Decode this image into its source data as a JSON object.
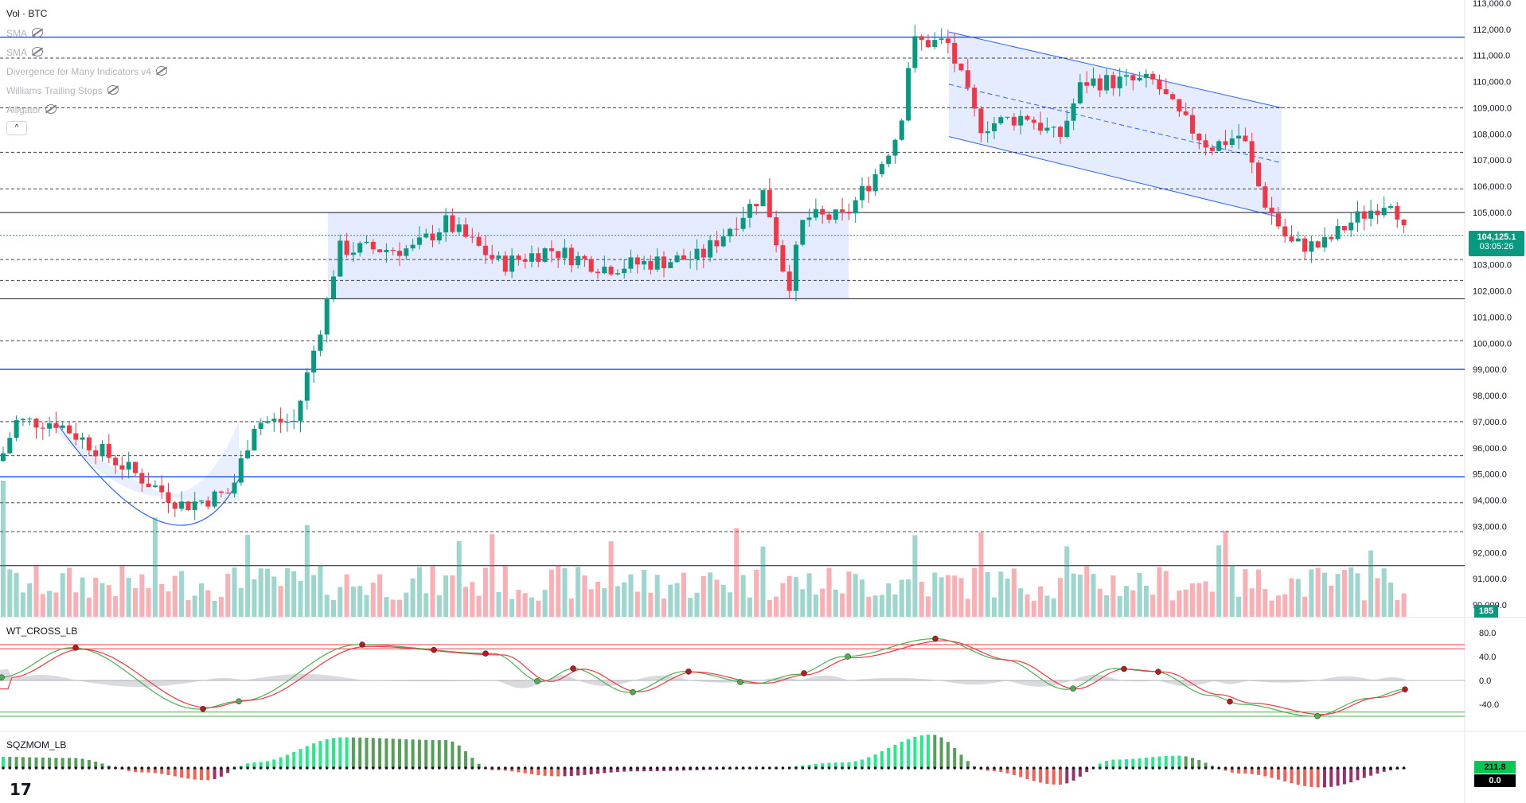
{
  "header": {
    "symbol": "Vol · BTC"
  },
  "indicators": [
    {
      "name": "SMA",
      "icon": "eye-off-icon"
    },
    {
      "name": "SMA",
      "icon": "eye-off-icon"
    },
    {
      "name": "Divergence for Many Indicators v4",
      "icon": "eye-off-icon"
    },
    {
      "name": "Williams Trailing Stops",
      "icon": "eye-off-icon"
    },
    {
      "name": "Alligator",
      "icon": "eye-off-icon"
    }
  ],
  "collapse_label": "^",
  "price_tag": {
    "price": "104,125.1",
    "countdown": "03:05:26",
    "color": "#089981"
  },
  "volume_tag": {
    "value": "185"
  },
  "wt_pane": {
    "title": "WT_CROSS_LB",
    "ticks": [
      "80.0",
      "40.0",
      "0.0",
      "-40.0"
    ]
  },
  "sqz_pane": {
    "title": "SQZMOM_LB",
    "value_tag": "211.8",
    "zero_tag": "0.0"
  },
  "logo": "17",
  "chart_data": {
    "type": "candlestick",
    "y_ticks": [
      "113,000.0",
      "112,000.0",
      "111,000.0",
      "110,000.0",
      "109,000.0",
      "108,000.0",
      "107,000.0",
      "106,000.0",
      "105,000.0",
      "104,000.0",
      "103,000.0",
      "102,000.0",
      "101,000.0",
      "100,000.0",
      "99,000.0",
      "98,000.0",
      "97,000.0",
      "96,000.0",
      "95,000.0",
      "94,000.0",
      "93,000.0",
      "92,000.0",
      "91,000.0",
      "90,000.0"
    ],
    "ylim": [
      90000,
      113000
    ],
    "horizontal_levels_blue": [
      111700,
      99000,
      94900
    ],
    "horizontal_levels_dark": [
      105000,
      101700,
      91500
    ],
    "horizontal_levels_dashed": [
      110900,
      109000,
      107300,
      105900,
      103200,
      102400,
      100100,
      97000,
      95700,
      93900,
      92800
    ],
    "current_price": 104125.1,
    "colors": {
      "up": "#089981",
      "down": "#f23645",
      "blue_line": "#2962ff"
    }
  }
}
